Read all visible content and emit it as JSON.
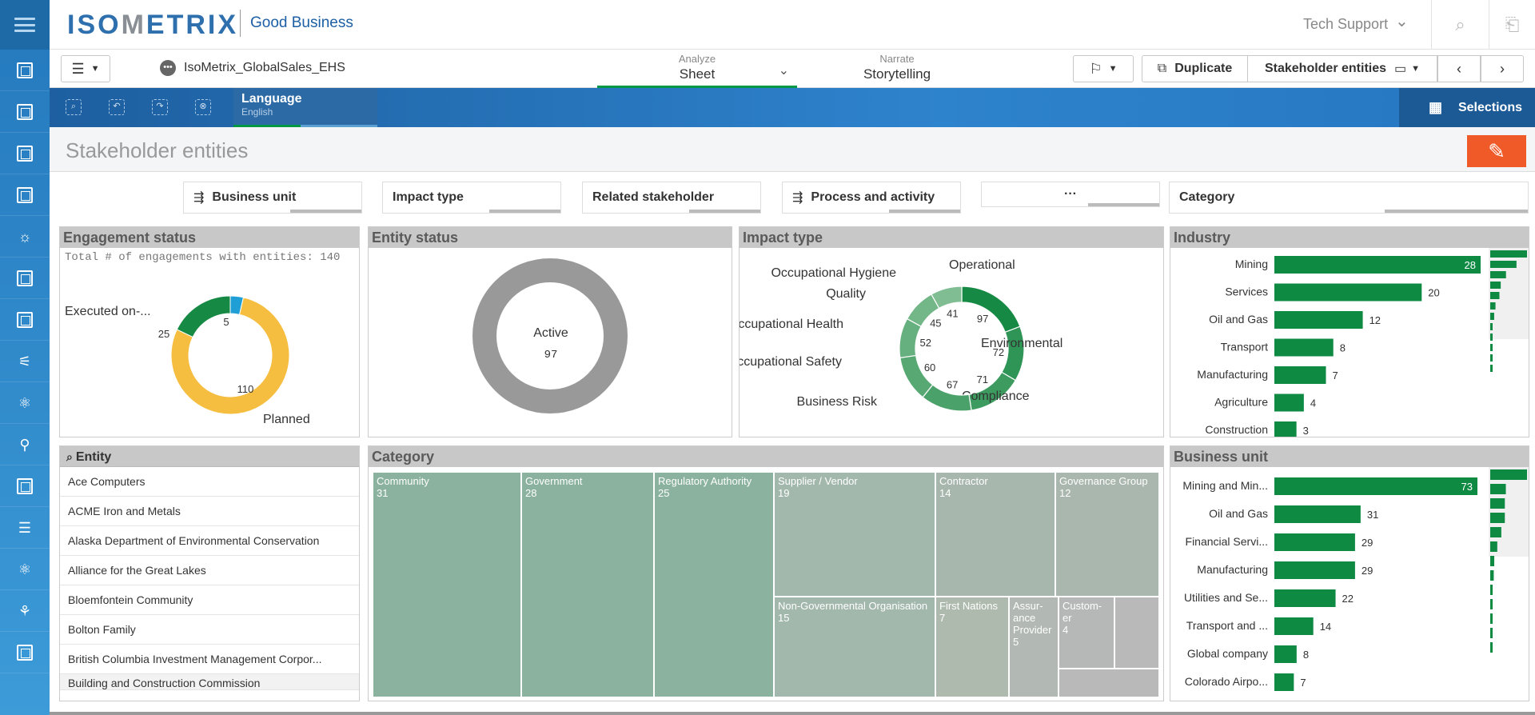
{
  "brand": {
    "logo_left": "ISO",
    "logo_m": "M",
    "logo_right": "ETRIX",
    "tagline": "Good Business"
  },
  "header": {
    "support": "Tech Support"
  },
  "rail": {
    "icons": [
      "menu-icon",
      "sheet-icon",
      "sheet-icon",
      "sheet-icon",
      "sheet-icon",
      "sun-icon",
      "sheet-icon",
      "sheet-icon",
      "sliders-icon",
      "atom-icon",
      "person-icon",
      "sheet-icon",
      "list-icon",
      "atom-icon",
      "chart-person-icon",
      "sheet-icon"
    ]
  },
  "toolbar": {
    "app_name": "IsoMetrix_GlobalSales_EHS",
    "analyze_small": "Analyze",
    "analyze_main": "Sheet",
    "narrate_small": "Narrate",
    "narrate_main": "Storytelling",
    "duplicate": "Duplicate",
    "sheet_select": "Stakeholder entities"
  },
  "selbar": {
    "lang_title": "Language",
    "lang_sub": "English",
    "selections": "Selections"
  },
  "sheet": {
    "title": "Stakeholder entities"
  },
  "filters": [
    "Business unit",
    "Impact type",
    "Related stakeholder",
    "Process and activity",
    "···",
    "Category"
  ],
  "engagement": {
    "title": "Engagement status",
    "subtitle": "Total # of engagements with entities: 140",
    "label_executed": "Executed on-...",
    "label_planned": "Planned"
  },
  "entity_status": {
    "title": "Entity status",
    "label": "Active",
    "value": "97"
  },
  "impact": {
    "title": "Impact type"
  },
  "industry": {
    "title": "Industry"
  },
  "entity_list": {
    "title": "Entity",
    "rows": [
      "Ace Computers",
      "ACME Iron and Metals",
      "Alaska Department of Environmental Conservation",
      "Alliance for the Great Lakes",
      "Bloemfontein Community",
      "Bolton Family",
      "British Columbia Investment Management Corpor...",
      "Building and Construction Commission"
    ]
  },
  "category": {
    "title": "Category"
  },
  "business_unit": {
    "title": "Business unit"
  },
  "chart_data": [
    {
      "type": "pie",
      "title": "Engagement status",
      "categories": [
        "Planned",
        "Executed on-...",
        ""
      ],
      "values": [
        110,
        25,
        5
      ],
      "colors": [
        "#f6be41",
        "#168a44",
        "#1f9fd6"
      ]
    },
    {
      "type": "pie",
      "title": "Entity status",
      "categories": [
        "Active"
      ],
      "values": [
        97
      ],
      "colors": [
        "#999999"
      ]
    },
    {
      "type": "pie",
      "title": "Impact type",
      "categories": [
        "Operational",
        "Environmental",
        "Compliance",
        "Business Risk",
        "Occupational Safety",
        "Occupational Health",
        "Quality",
        "Occupational Hygiene"
      ],
      "values": [
        97,
        72,
        71,
        67,
        60,
        52,
        45,
        41
      ],
      "colors": [
        "#168a44",
        "#2f9557",
        "#3d9b60",
        "#4aa16a",
        "#58a874",
        "#66af7e",
        "#73b688",
        "#80bd92"
      ]
    },
    {
      "type": "bar",
      "title": "Industry",
      "categories": [
        "Mining",
        "Services",
        "Oil and Gas",
        "Transport",
        "Manufacturing",
        "Agriculture",
        "Construction"
      ],
      "values": [
        28,
        20,
        12,
        8,
        7,
        4,
        3
      ],
      "color": "#0f8a43"
    },
    {
      "type": "heatmap",
      "title": "Category",
      "categories": [
        "Community",
        "Government",
        "Regulatory Authority",
        "Supplier / Vendor",
        "Contractor",
        "Governance Group",
        "Non-Governmental Organisation",
        "First Nations",
        "Assurance Provider",
        "Customer"
      ],
      "labels": [
        "Community",
        "Government",
        "Regulatory Authority",
        "Supplier / Vendor",
        "Contractor",
        "Governance Group",
        "Non-Governmental Organisation",
        "First Nations",
        "Assur-ance Provider",
        "Custom-er"
      ],
      "values": [
        31,
        28,
        25,
        19,
        14,
        12,
        15,
        7,
        5,
        4
      ]
    },
    {
      "type": "bar",
      "title": "Business unit",
      "categories": [
        "Mining and Min...",
        "Oil and Gas",
        "Financial Servi...",
        "Manufacturing",
        "Utilities and Se...",
        "Transport and ...",
        "Global company",
        "Colorado Airpo..."
      ],
      "values": [
        73,
        31,
        29,
        29,
        22,
        14,
        8,
        7
      ],
      "color": "#0f8a43"
    }
  ]
}
